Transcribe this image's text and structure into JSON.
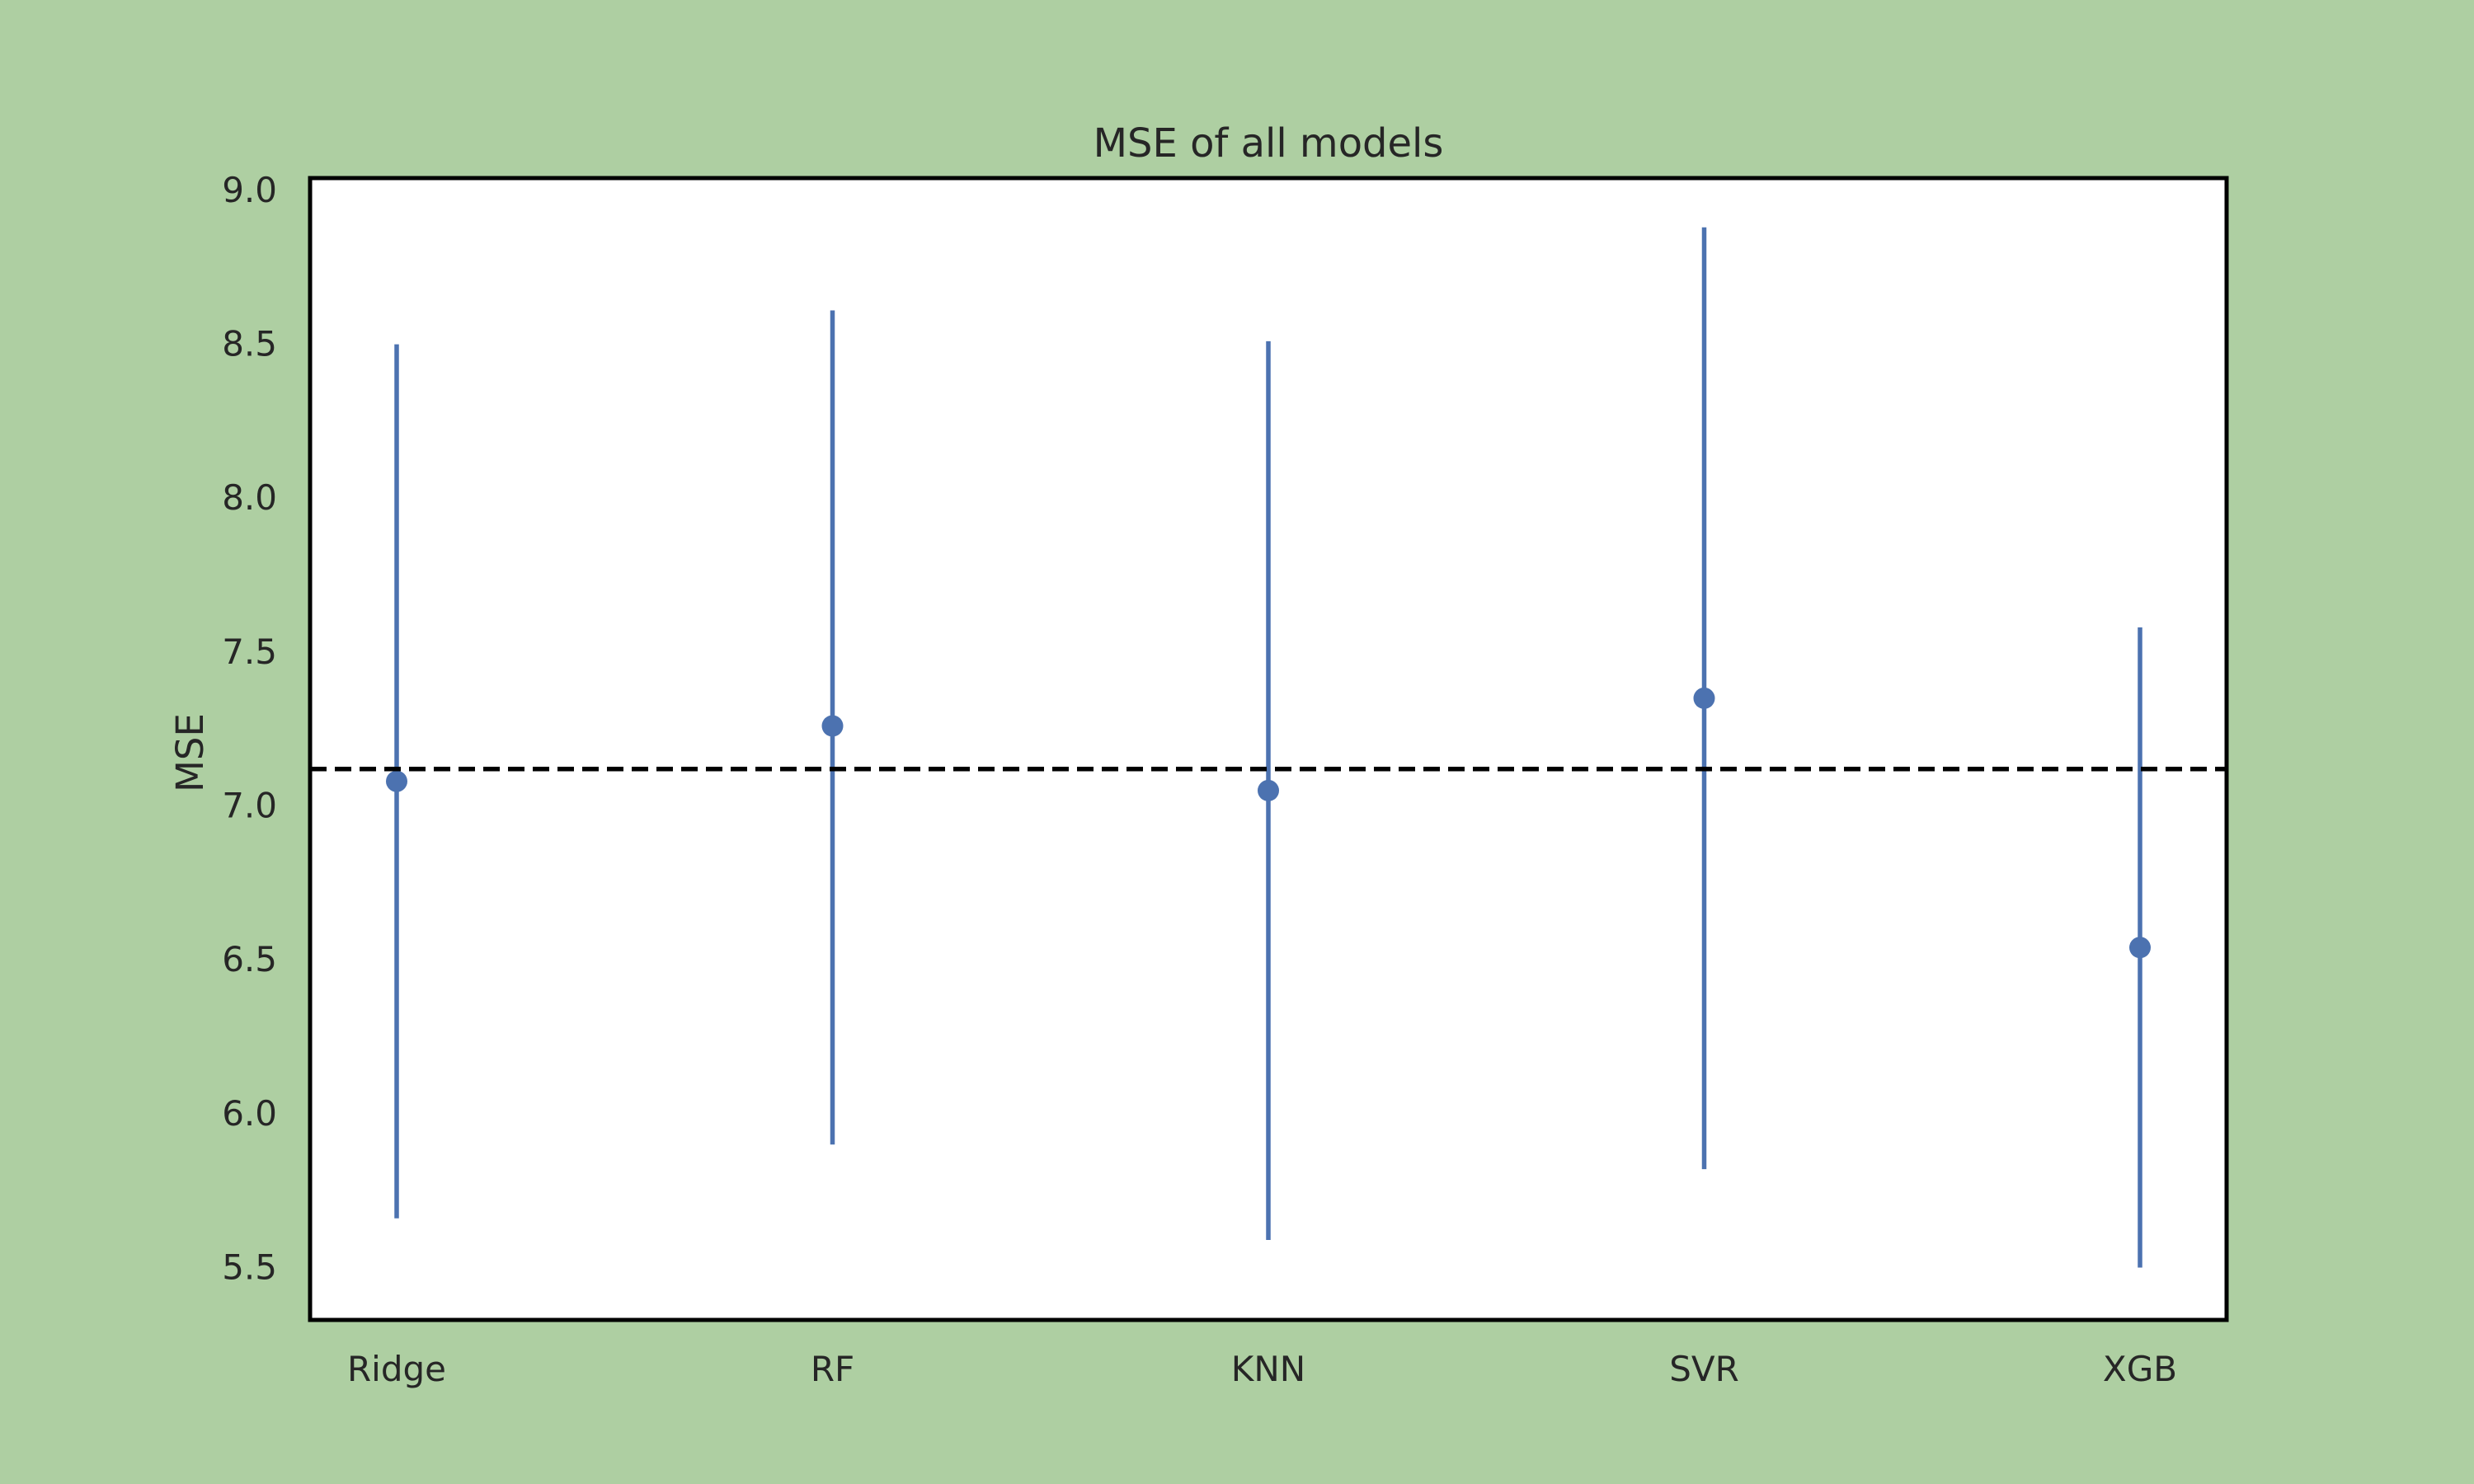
{
  "chart_data": {
    "type": "scatter",
    "title": "MSE of all models",
    "xlabel": "",
    "ylabel": "MSE",
    "categories": [
      "Ridge",
      "RF",
      "KNN",
      "SVR",
      "XGB"
    ],
    "series": [
      {
        "values": [
          7.08,
          7.26,
          7.05,
          7.35,
          6.54
        ],
        "lower": [
          5.66,
          5.9,
          5.59,
          5.82,
          5.5
        ],
        "upper": [
          8.5,
          8.61,
          8.51,
          8.88,
          7.58
        ]
      }
    ],
    "reference_line": {
      "y": 7.12,
      "style": "dashed"
    },
    "ylim": [
      5.33,
      9.04
    ],
    "yticks": [
      "5.5",
      "6.0",
      "6.5",
      "7.0",
      "7.5",
      "8.0",
      "8.5",
      "9.0"
    ],
    "grid": false,
    "legend": "none",
    "colors": {
      "figure_background": "#aecfa2",
      "plot_background": "#ffffff",
      "series": "#4c72b0",
      "reference_line": "#000000",
      "text": "#262626"
    }
  }
}
